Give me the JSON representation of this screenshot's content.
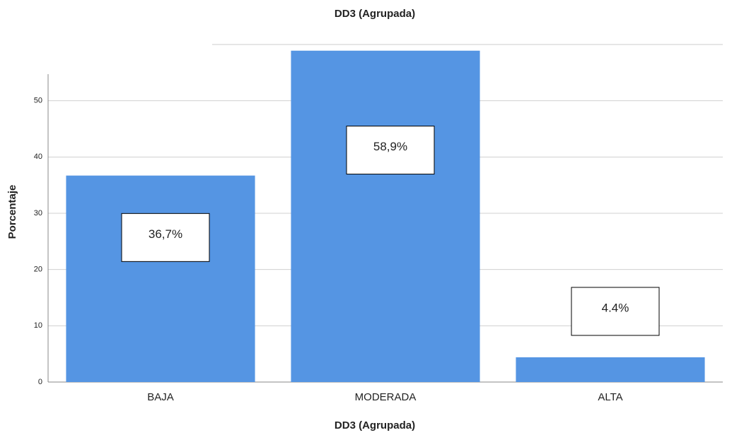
{
  "chart_data": {
    "type": "bar",
    "title": "DD3 (Agrupada)",
    "x_label": "DD3 (Agrupada)",
    "y_label": "Porcentaje",
    "categories": [
      "BAJA",
      "MODERADA",
      "ALTA"
    ],
    "values": [
      36.7,
      58.9,
      4.4
    ],
    "value_labels": [
      "36,7%",
      "58,9%",
      "4.4%"
    ],
    "color": "#5595e3",
    "ylim": [
      0,
      60
    ],
    "yticks": [
      0,
      10,
      20,
      30,
      40,
      50
    ],
    "grid": true
  }
}
